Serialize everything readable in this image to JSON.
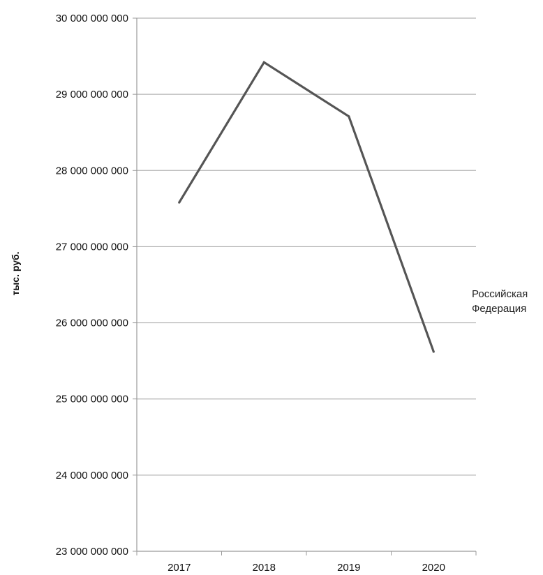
{
  "chart_data": {
    "type": "line",
    "title": "",
    "xlabel": "",
    "ylabel": "тыс. руб.",
    "categories": [
      "2017",
      "2018",
      "2019",
      "2020"
    ],
    "series": [
      {
        "name": "Российская Федерация",
        "name_lines": [
          "Российская",
          "Федерация"
        ],
        "values": [
          27580000000,
          29420000000,
          28710000000,
          25620000000
        ],
        "color": "#555555"
      }
    ],
    "ylim": [
      23000000000,
      30000000000
    ],
    "yticks": [
      23000000000,
      24000000000,
      25000000000,
      26000000000,
      27000000000,
      28000000000,
      29000000000,
      30000000000
    ],
    "ytick_labels": [
      "23 000 000 000",
      "24 000 000 000",
      "25 000 000 000",
      "26 000 000 000",
      "27 000 000 000",
      "28 000 000 000",
      "29 000 000 000",
      "30 000 000 000"
    ],
    "grid": true,
    "legend_position": "right",
    "colors": {
      "grid": "#b5b5b5",
      "axis": "#9a9a9a",
      "line": "#555555"
    }
  }
}
